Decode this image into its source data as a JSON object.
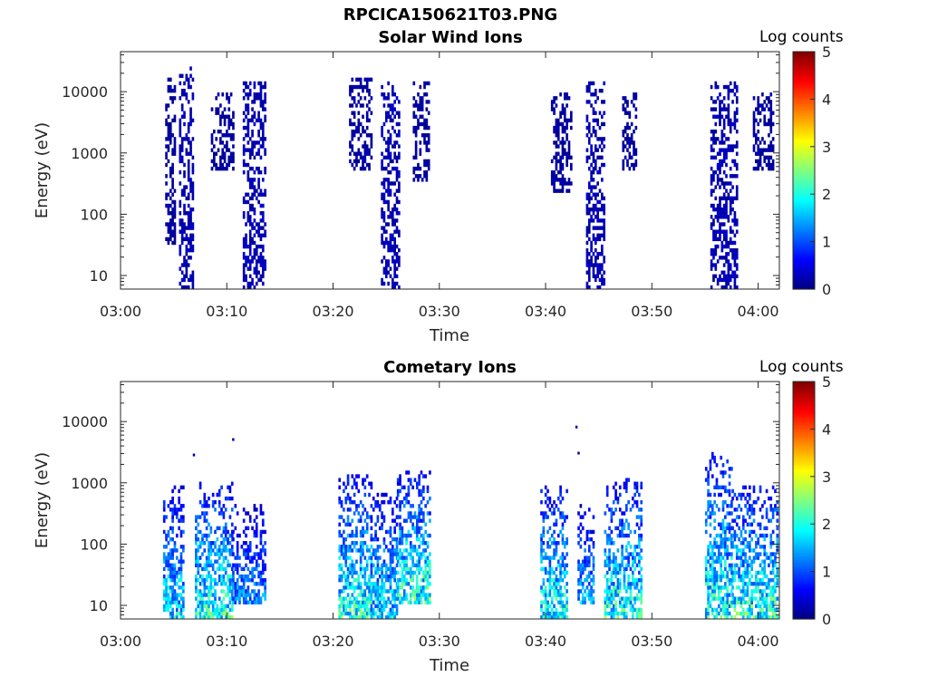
{
  "figure": {
    "title_line1": "RPCICA150621T03.PNG",
    "colorbar_label": "Log counts",
    "colorbar_ticks": [
      "0",
      "1",
      "2",
      "3",
      "4",
      "5"
    ],
    "colormap": "jet"
  },
  "chart_data": [
    {
      "type": "heatmap",
      "title": "Solar Wind Ions",
      "xlabel": "Time",
      "ylabel": "Energy (eV)",
      "xticks": [
        "03:00",
        "03:10",
        "03:20",
        "03:30",
        "03:40",
        "03:50",
        "04:00"
      ],
      "xlim_minutes": [
        0,
        62
      ],
      "yscale": "log",
      "ylim": [
        6,
        45000
      ],
      "yticks": [
        "10",
        "100",
        "1000",
        "10000"
      ],
      "clim": [
        0,
        5
      ],
      "bursts": [
        {
          "start_min": 5.5,
          "end_min": 6.8,
          "emin": 6,
          "emax": 25000,
          "peak": 0.5
        },
        {
          "start_min": 4.2,
          "end_min": 5.2,
          "emin": 30,
          "emax": 15000,
          "peak": 0.3
        },
        {
          "start_min": 8.5,
          "end_min": 10.5,
          "emin": 500,
          "emax": 9000,
          "peak": 0.3
        },
        {
          "start_min": 11.5,
          "end_min": 13.5,
          "emin": 6,
          "emax": 14000,
          "peak": 0.5
        },
        {
          "start_min": 21.5,
          "end_min": 23.5,
          "emin": 500,
          "emax": 15000,
          "peak": 0.3
        },
        {
          "start_min": 24.5,
          "end_min": 26.2,
          "emin": 6,
          "emax": 14000,
          "peak": 0.5
        },
        {
          "start_min": 27.5,
          "end_min": 29.0,
          "emin": 300,
          "emax": 14000,
          "peak": 0.3
        },
        {
          "start_min": 40.5,
          "end_min": 42.5,
          "emin": 200,
          "emax": 9000,
          "peak": 0.3
        },
        {
          "start_min": 43.8,
          "end_min": 45.5,
          "emin": 6,
          "emax": 14000,
          "peak": 0.5
        },
        {
          "start_min": 47.2,
          "end_min": 48.5,
          "emin": 500,
          "emax": 9000,
          "peak": 0.3
        },
        {
          "start_min": 55.5,
          "end_min": 58.0,
          "emin": 6,
          "emax": 14000,
          "peak": 0.5
        },
        {
          "start_min": 59.5,
          "end_min": 61.5,
          "emin": 500,
          "emax": 9000,
          "peak": 0.3
        }
      ]
    },
    {
      "type": "heatmap",
      "title": "Cometary Ions",
      "xlabel": "Time",
      "ylabel": "Energy (eV)",
      "xticks": [
        "03:00",
        "03:10",
        "03:20",
        "03:30",
        "03:40",
        "03:50",
        "04:00"
      ],
      "xlim_minutes": [
        0,
        62
      ],
      "yscale": "log",
      "ylim": [
        6,
        45000
      ],
      "yticks": [
        "10",
        "100",
        "1000",
        "10000"
      ],
      "clim": [
        0,
        5
      ],
      "bursts": [
        {
          "start_min": 4.0,
          "end_min": 6.0,
          "emin": 6,
          "emax": 900,
          "peak": 2.0
        },
        {
          "start_min": 7.0,
          "end_min": 10.5,
          "emin": 6,
          "emax": 1000,
          "peak": 2.3
        },
        {
          "start_min": 10.5,
          "end_min": 13.5,
          "emin": 10,
          "emax": 400,
          "peak": 1.5
        },
        {
          "start_min": 20.5,
          "end_min": 23.5,
          "emin": 6,
          "emax": 1200,
          "peak": 2.3
        },
        {
          "start_min": 23.5,
          "end_min": 26.0,
          "emin": 6,
          "emax": 600,
          "peak": 2.0
        },
        {
          "start_min": 26.0,
          "end_min": 29.0,
          "emin": 10,
          "emax": 1400,
          "peak": 2.4
        },
        {
          "start_min": 39.5,
          "end_min": 42.0,
          "emin": 6,
          "emax": 800,
          "peak": 2.3
        },
        {
          "start_min": 43.0,
          "end_min": 44.5,
          "emin": 10,
          "emax": 400,
          "peak": 1.8
        },
        {
          "start_min": 45.5,
          "end_min": 49.0,
          "emin": 6,
          "emax": 1100,
          "peak": 2.3
        },
        {
          "start_min": 55.0,
          "end_min": 57.5,
          "emin": 6,
          "emax": 3000,
          "peak": 2.3
        },
        {
          "start_min": 57.5,
          "end_min": 61.8,
          "emin": 6,
          "emax": 900,
          "peak": 2.4
        }
      ],
      "isolated_points": [
        {
          "min": 42.8,
          "e": 8000
        },
        {
          "min": 43.0,
          "e": 3000
        },
        {
          "min": 10.5,
          "e": 5000
        },
        {
          "min": 6.8,
          "e": 2800
        }
      ]
    }
  ]
}
